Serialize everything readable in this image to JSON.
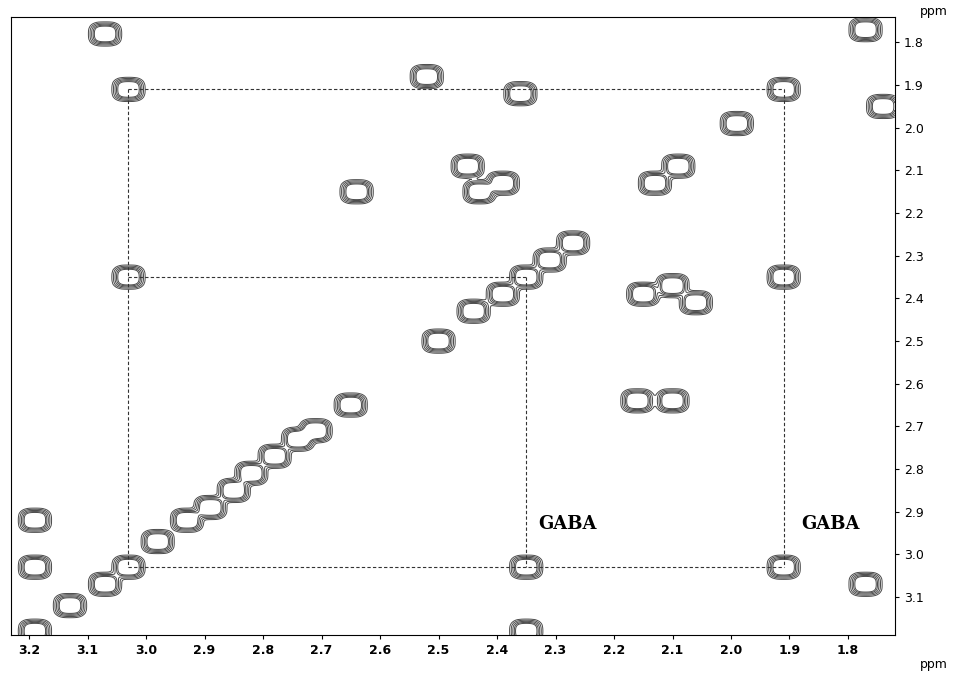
{
  "chart_data": {
    "type": "contour",
    "x_label": "ppm",
    "y_label": "ppm",
    "xlim": [
      3.23,
      1.72
    ],
    "ylim": [
      3.19,
      1.74
    ],
    "xticks": [
      3.2,
      3.1,
      3.0,
      2.9,
      2.8,
      2.7,
      2.6,
      2.5,
      2.4,
      2.3,
      2.2,
      2.1,
      2.0,
      1.9,
      1.8
    ],
    "yticks": [
      1.8,
      1.9,
      2.0,
      2.1,
      2.2,
      2.3,
      2.4,
      2.5,
      2.6,
      2.7,
      2.8,
      2.9,
      3.0,
      3.1
    ],
    "color": "#4a4a4a",
    "peaks": [
      {
        "x": 3.19,
        "y": 3.18
      },
      {
        "x": 3.13,
        "y": 3.12
      },
      {
        "x": 3.07,
        "y": 3.07
      },
      {
        "x": 3.03,
        "y": 3.03
      },
      {
        "x": 2.98,
        "y": 2.97
      },
      {
        "x": 2.93,
        "y": 2.92
      },
      {
        "x": 2.89,
        "y": 2.89
      },
      {
        "x": 2.85,
        "y": 2.85
      },
      {
        "x": 2.82,
        "y": 2.81
      },
      {
        "x": 2.78,
        "y": 2.77
      },
      {
        "x": 2.74,
        "y": 2.73
      },
      {
        "x": 2.71,
        "y": 2.71
      },
      {
        "x": 2.65,
        "y": 2.65
      },
      {
        "x": 2.5,
        "y": 2.5
      },
      {
        "x": 2.44,
        "y": 2.43
      },
      {
        "x": 2.39,
        "y": 2.39
      },
      {
        "x": 2.35,
        "y": 2.35
      },
      {
        "x": 2.31,
        "y": 2.31
      },
      {
        "x": 2.27,
        "y": 2.27
      },
      {
        "x": 2.13,
        "y": 2.13
      },
      {
        "x": 2.09,
        "y": 2.09
      },
      {
        "x": 1.99,
        "y": 1.99
      },
      {
        "x": 1.91,
        "y": 1.91
      },
      {
        "x": 1.77,
        "y": 1.77
      },
      {
        "x": 3.03,
        "y": 1.91
      },
      {
        "x": 3.03,
        "y": 2.35
      },
      {
        "x": 2.35,
        "y": 3.03
      },
      {
        "x": 1.91,
        "y": 3.03
      },
      {
        "x": 2.36,
        "y": 1.92
      },
      {
        "x": 1.91,
        "y": 2.35
      },
      {
        "x": 2.45,
        "y": 2.09
      },
      {
        "x": 2.39,
        "y": 2.13
      },
      {
        "x": 2.43,
        "y": 2.15
      },
      {
        "x": 2.15,
        "y": 2.39
      },
      {
        "x": 2.1,
        "y": 2.37
      },
      {
        "x": 2.06,
        "y": 2.41
      },
      {
        "x": 2.64,
        "y": 2.15
      },
      {
        "x": 2.16,
        "y": 2.64
      },
      {
        "x": 2.1,
        "y": 2.64
      },
      {
        "x": 3.07,
        "y": 1.78
      },
      {
        "x": 1.77,
        "y": 3.07
      },
      {
        "x": 3.19,
        "y": 2.92
      },
      {
        "x": 3.19,
        "y": 3.03
      },
      {
        "x": 2.52,
        "y": 1.88
      },
      {
        "x": 2.35,
        "y": 3.18
      },
      {
        "x": 1.74,
        "y": 1.95
      }
    ],
    "dashed_lines": [
      [
        3.03,
        1.91,
        1.91,
        1.91
      ],
      [
        3.03,
        2.35,
        2.35,
        2.35
      ],
      [
        3.03,
        3.03,
        1.91,
        3.03
      ],
      [
        3.03,
        1.91,
        3.03,
        3.03
      ],
      [
        2.35,
        2.35,
        2.35,
        3.03
      ],
      [
        1.91,
        1.91,
        1.91,
        3.03
      ]
    ],
    "annotations": [
      {
        "text": "GABA",
        "x": 2.33,
        "y": 2.95
      },
      {
        "text": "GABA",
        "x": 1.88,
        "y": 2.95
      }
    ]
  }
}
